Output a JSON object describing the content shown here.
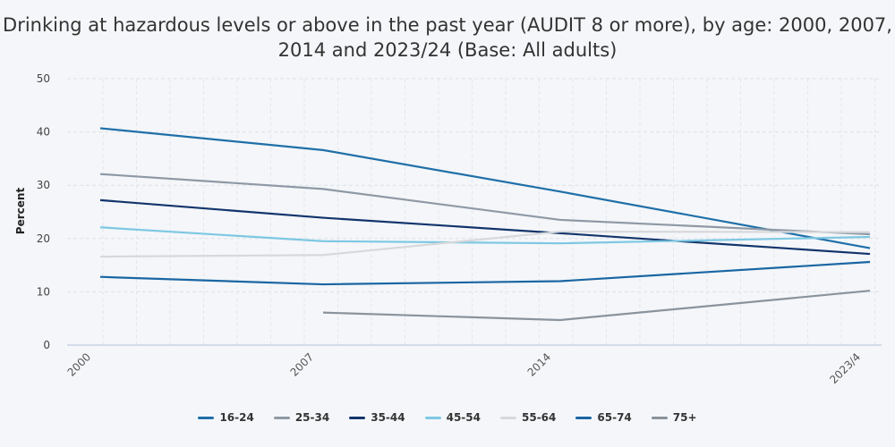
{
  "chart_data": {
    "type": "line",
    "title": "Drinking at hazardous levels or above in the past year (AUDIT 8 or more), by age: 2000, 2007, 2014 and 2023/24 (Base: All adults)",
    "xlabel": "",
    "ylabel": "Percent",
    "ylim": [
      0,
      50
    ],
    "yticks": [
      0,
      10,
      20,
      30,
      40,
      50
    ],
    "categories": [
      "2000",
      "2007",
      "2014",
      "2023/4"
    ],
    "grid": true,
    "legend": "bottom",
    "series": [
      {
        "name": "16-24",
        "color": "#1f6fa8",
        "values": [
          40.7,
          36.6,
          28.8,
          18.2
        ]
      },
      {
        "name": "25-34",
        "color": "#8e99a5",
        "values": [
          32.1,
          29.3,
          23.5,
          20.8
        ]
      },
      {
        "name": "35-44",
        "color": "#12346b",
        "values": [
          27.2,
          23.9,
          21.0,
          17.1
        ]
      },
      {
        "name": "45-54",
        "color": "#7ec8e3",
        "values": [
          22.1,
          19.5,
          19.1,
          20.3
        ]
      },
      {
        "name": "55-64",
        "color": "#d6d8db",
        "values": [
          16.6,
          16.9,
          21.3,
          21.2
        ]
      },
      {
        "name": "65-74",
        "color": "#1a66a3",
        "values": [
          12.8,
          11.4,
          12.0,
          15.6
        ]
      },
      {
        "name": "75+",
        "color": "#8a939c",
        "values": [
          null,
          6.1,
          4.7,
          10.2
        ]
      }
    ]
  }
}
